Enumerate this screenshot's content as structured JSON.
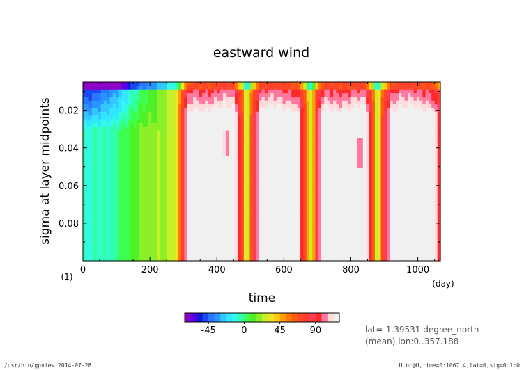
{
  "footer": {
    "left": "/usr/bin/gpview  2014-07-28",
    "right": "U.nc@U,time=0:1067.4,lat=0,sig=0.1:0"
  },
  "chart_data": {
    "type": "heatmap",
    "title": "eastward wind",
    "xlabel": "time",
    "ylabel": "sigma at layer midpoints",
    "x_unit": "(day)",
    "y_unit": "(1)",
    "xlim": [
      0,
      1067.4
    ],
    "ylim": [
      0.1,
      0.005
    ],
    "y_axis_inverted": true,
    "x_ticks": [
      0,
      200,
      400,
      600,
      800,
      1000
    ],
    "x_tick_labels": [
      "0",
      "200",
      "400",
      "600",
      "800",
      "1000"
    ],
    "y_ticks": [
      0.02,
      0.04,
      0.06,
      0.08
    ],
    "y_tick_labels": [
      "0.02",
      "0.04",
      "0.06",
      "0.08"
    ],
    "annotations": [
      "lat=-1.39531 degree_north",
      "(mean) lon:0..357.188"
    ],
    "colorbar": {
      "tick_values": [
        -45,
        0,
        45,
        90
      ],
      "tick_labels": [
        "-45",
        "0",
        "45",
        "90"
      ],
      "bin_edges": [
        -75,
        -67.5,
        -60,
        -52.5,
        -45,
        -37.5,
        -30,
        -22.5,
        -15,
        -7.5,
        0,
        7.5,
        15,
        22.5,
        30,
        37.5,
        45,
        52.5,
        60,
        67.5,
        75,
        82.5,
        90,
        97.5,
        105,
        112.5,
        120
      ],
      "colors": [
        "#8c00c8",
        "#5a00e6",
        "#0a1ed2",
        "#1e46f0",
        "#2878ff",
        "#2896ff",
        "#32c8ff",
        "#32e6ff",
        "#32fae6",
        "#32ffaa",
        "#3cff50",
        "#50f028",
        "#8cf028",
        "#c8f028",
        "#f0e628",
        "#ffc814",
        "#ffa000",
        "#ff7800",
        "#ff5a14",
        "#ff4628",
        "#ff3c32",
        "#ff3c50",
        "#ff2828",
        "#ff78a0",
        "#ffdcdc",
        "#f0f0f0"
      ]
    },
    "values_described": "Zonal-mean eastward wind (time vs sigma). Easterlies (-60..-45) near top until ~300 days; westerly bursts up to ~90+ at roughly days 300-470, 510-660, 700-860, 900-1067."
  }
}
